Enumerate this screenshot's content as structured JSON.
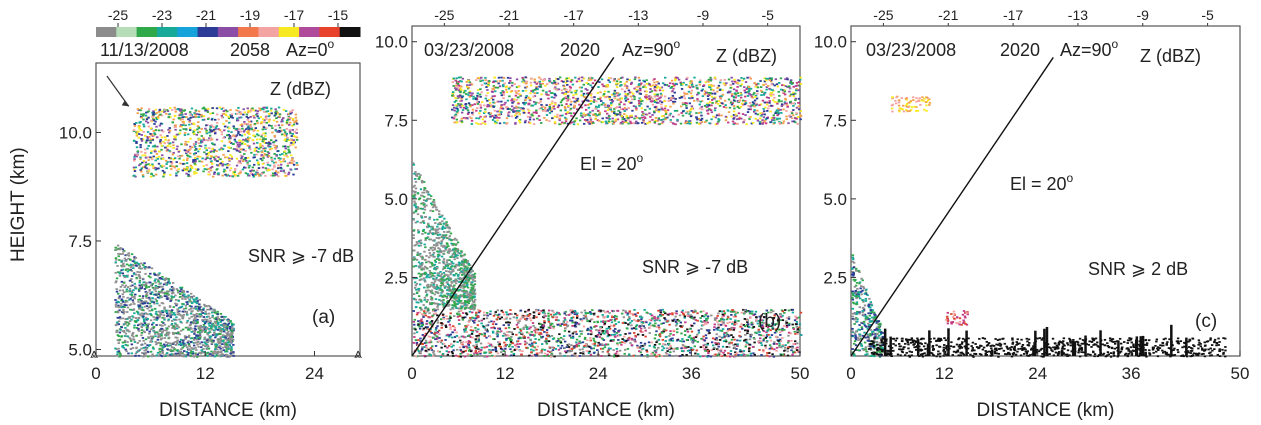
{
  "figure": {
    "ylabel_shared": "HEIGHT  (km)",
    "xlabel_shared": "DISTANCE  (km)"
  },
  "colors": {
    "colorbar": [
      "#8c8c8c",
      "#b5ddb8",
      "#2fa84a",
      "#17a99a",
      "#16a3dc",
      "#2b3c96",
      "#8c4da7",
      "#f2784b",
      "#f4a3a3",
      "#f7ea23",
      "#b04a9a",
      "#e8412c",
      "#111111"
    ],
    "data": {
      "gray": "#8f8f8f",
      "green": "#2fa84a",
      "teal": "#17a99a",
      "blue": "#2b3c96",
      "purple": "#8c4da7",
      "salmon": "#f4a3a3",
      "orange": "#f2a14b",
      "yellow": "#f7ea23",
      "magenta": "#c23a86",
      "red": "#d9452e",
      "black": "#111111",
      "cyan": "#16a3dc"
    }
  },
  "chart_data": [
    {
      "type": "scatter",
      "panel_label": "(a)",
      "date": "11/13/2008",
      "time": "2058",
      "azimuth": "Az=0",
      "variable": "Z (dBZ)",
      "snr": "SNR ⩾ -7 dB",
      "xlabel": "DISTANCE  (km)",
      "ylabel": "HEIGHT  (km)",
      "xticks": [
        "0",
        "12",
        "24"
      ],
      "yticks": [
        "5.0",
        "7.5",
        "10.0"
      ],
      "xlim": [
        0,
        29
      ],
      "ylim": [
        4.85,
        11.6
      ],
      "colorbar_ticks": [
        "-25",
        "-23",
        "-21",
        "-19",
        "-17",
        "-15"
      ],
      "colorbar_range": [
        -26,
        -14
      ],
      "regions": [
        {
          "name": "upper cloud",
          "x": [
            4,
            22
          ],
          "y": [
            9.0,
            10.6
          ],
          "mix": [
            "green",
            "teal",
            "blue",
            "purple",
            "salmon",
            "orange",
            "yellow"
          ]
        },
        {
          "name": "lower echo",
          "x": [
            2,
            15
          ],
          "y": [
            4.85,
            7.5
          ],
          "mix": [
            "gray",
            "gray",
            "gray",
            "green",
            "teal",
            "blue"
          ]
        }
      ],
      "annotations": [
        "arrow toward cloud top near 5 km, 10.5 km"
      ]
    },
    {
      "type": "scatter",
      "panel_label": "(b)",
      "date": "03/23/2008",
      "time": "2020",
      "azimuth": "Az=90",
      "variable": "Z (dBZ)",
      "elevation": "El = 20",
      "snr": "SNR ⩾ -7 dB",
      "xlabel": "DISTANCE  (km)",
      "xticks": [
        "0",
        "12",
        "24",
        "36",
        "50"
      ],
      "yticks": [
        "2.5",
        "5.0",
        "7.5",
        "10.0"
      ],
      "xlim": [
        0,
        50
      ],
      "ylim": [
        0,
        10.5
      ],
      "colorbar_ticks": [
        "-25",
        "-21",
        "-17",
        "-13",
        "-9",
        "-5"
      ],
      "colorbar_range": [
        -27,
        -3
      ],
      "regions": [
        {
          "name": "upper cloud",
          "x": [
            5,
            50
          ],
          "y": [
            7.4,
            8.9
          ],
          "mix": [
            "green",
            "teal",
            "blue",
            "purple",
            "salmon",
            "orange",
            "yellow",
            "magenta"
          ]
        },
        {
          "name": "low clutter",
          "x": [
            0,
            50
          ],
          "y": [
            0,
            1.5
          ],
          "mix": [
            "gray",
            "green",
            "teal",
            "blue",
            "salmon",
            "magenta",
            "red",
            "black"
          ]
        },
        {
          "name": "near echo",
          "x": [
            0,
            8
          ],
          "y": [
            1.5,
            6.2
          ],
          "mix": [
            "gray",
            "gray",
            "green",
            "teal"
          ]
        }
      ],
      "beam_line": {
        "from": [
          0,
          0
        ],
        "to": [
          26,
          9.5
        ]
      }
    },
    {
      "type": "scatter",
      "panel_label": "(c)",
      "date": "03/23/2008",
      "time": "2020",
      "azimuth": "Az=90",
      "variable": "Z (dBZ)",
      "elevation": "El = 20",
      "snr": "SNR ⩾ 2 dB",
      "xlabel": "DISTANCE  (km)",
      "xticks": [
        "0",
        "12",
        "24",
        "36",
        "50"
      ],
      "yticks": [
        "2.5",
        "5.0",
        "7.5",
        "10.0"
      ],
      "xlim": [
        0,
        50
      ],
      "ylim": [
        0,
        10.5
      ],
      "colorbar_ticks": [
        "-25",
        "-21",
        "-17",
        "-13",
        "-9",
        "-5"
      ],
      "colorbar_range": [
        -27,
        -3
      ],
      "regions": [
        {
          "name": "upper cloud",
          "x": [
            5,
            10
          ],
          "y": [
            7.8,
            8.3
          ],
          "mix": [
            "salmon",
            "orange",
            "yellow"
          ]
        },
        {
          "name": "near echo",
          "x": [
            0,
            4
          ],
          "y": [
            0,
            3.3
          ],
          "mix": [
            "green",
            "teal",
            "blue",
            "gray"
          ]
        },
        {
          "name": "clutter",
          "x": [
            12,
            15
          ],
          "y": [
            1.0,
            1.5
          ],
          "mix": [
            "salmon",
            "red",
            "magenta"
          ]
        },
        {
          "name": "ground spikes",
          "x": [
            2,
            48
          ],
          "y": [
            0,
            0.6
          ],
          "mix": [
            "black"
          ]
        }
      ],
      "beam_line": {
        "from": [
          0,
          0
        ],
        "to": [
          26,
          9.5
        ]
      }
    }
  ]
}
